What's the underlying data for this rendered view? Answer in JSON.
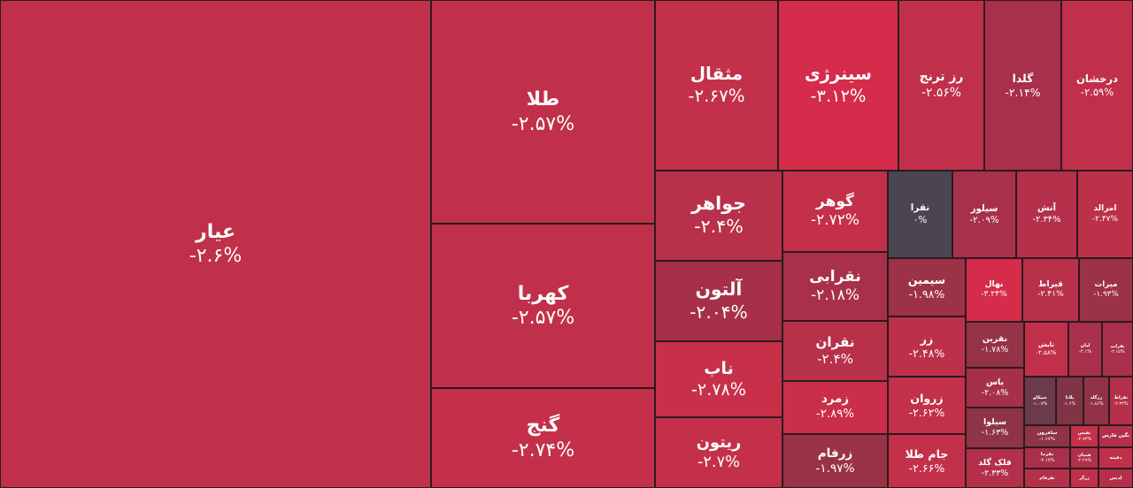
{
  "tiles": [
    {
      "name": "عیار",
      "change": "-۲.۶%",
      "color": "#c0304a"
    },
    {
      "name": "طلا",
      "change": "-۲.۵۷%",
      "color": "#c0304a"
    },
    {
      "name": "کهربا",
      "change": "-۲.۵۷%",
      "color": "#c0304a"
    },
    {
      "name": "گنج",
      "change": "-۲.۷۴%",
      "color": "#c4304a"
    },
    {
      "name": "مثقال",
      "change": "-۲.۶۷%",
      "color": "#c2304a"
    },
    {
      "name": "سینرژی",
      "change": "-۳.۱۲%",
      "color": "#d42c4a"
    },
    {
      "name": "رز ترنج",
      "change": "-۲.۵۶%",
      "color": "#c0304a"
    },
    {
      "name": "گلدا",
      "change": "-۲.۱۴%",
      "color": "#a8304a"
    },
    {
      "name": "درخشان",
      "change": "-۲.۵۹%",
      "color": "#c0304a"
    },
    {
      "name": "جواهر",
      "change": "-۲.۴%",
      "color": "#b8304a"
    },
    {
      "name": "آلتون",
      "change": "-۲.۰۴%",
      "color": "#a53048"
    },
    {
      "name": "ناب",
      "change": "-۲.۷۸%",
      "color": "#c8304a"
    },
    {
      "name": "ریتون",
      "change": "-۲.۷%",
      "color": "#c4304a"
    },
    {
      "name": "گوهر",
      "change": "-۲.۷۲%",
      "color": "#c4304a"
    },
    {
      "name": "نقرابی",
      "change": "-۲.۱۸%",
      "color": "#a83048"
    },
    {
      "name": "نقران",
      "change": "-۲.۴%",
      "color": "#b8304a"
    },
    {
      "name": "زمرد",
      "change": "-۲.۸۹%",
      "color": "#ca2e48"
    },
    {
      "name": "زرفام",
      "change": "-۱.۹۷%",
      "color": "#9a3246"
    },
    {
      "name": "نقرا",
      "change": "۰%",
      "color": "#4a4550"
    },
    {
      "name": "سیلور",
      "change": "-۲.۰۹%",
      "color": "#a8304a"
    },
    {
      "name": "آتش",
      "change": "-۲.۳۴%",
      "color": "#b4304a"
    },
    {
      "name": "امرالد",
      "change": "-۲.۴۷%",
      "color": "#bc304a"
    },
    {
      "name": "سیمین",
      "change": "-۱.۹۸%",
      "color": "#9c3246"
    },
    {
      "name": "زر",
      "change": "-۲.۴۸%",
      "color": "#bc304a"
    },
    {
      "name": "زروان",
      "change": "-۲.۶۲%",
      "color": "#c2304a"
    },
    {
      "name": "جام طلا",
      "change": "-۲.۶۶%",
      "color": "#c2304a"
    },
    {
      "name": "نهال",
      "change": "-۳.۲۴%",
      "color": "#d42c4a"
    },
    {
      "name": "قیراط",
      "change": "-۲.۴۱%",
      "color": "#b8304a"
    },
    {
      "name": "میرات",
      "change": "-۱.۹۳%",
      "color": "#9c3246"
    },
    {
      "name": "نقرین",
      "change": "-۱.۷۸%",
      "color": "#953246"
    },
    {
      "name": "یاس",
      "change": "-۲.۰۸%",
      "color": "#a53048"
    },
    {
      "name": "سیلوا",
      "change": "-۱.۶۳%",
      "color": "#8e3446"
    },
    {
      "name": "فلک گلد",
      "change": "-۲.۳۳%",
      "color": "#b4304a"
    },
    {
      "name": "تابش",
      "change": "-۲.۵۸%",
      "color": "#c0304a"
    },
    {
      "name": "لیان",
      "change": "-۲.۱%",
      "color": "#a8304a"
    },
    {
      "name": "نقرامد",
      "change": "-۲.۱۵%",
      "color": "#a8304a"
    },
    {
      "name": "سیکاو",
      "change": "-۱.۰۷%",
      "color": "#6c3a48"
    },
    {
      "name": "پلاتا",
      "change": "-۱.۶%",
      "color": "#803446"
    },
    {
      "name": "رزگلد",
      "change": "-۱.۸۶%",
      "color": "#923246"
    },
    {
      "name": "نقراط",
      "change": "-۲.۳۳%",
      "color": "#b4304a"
    },
    {
      "name": "سافرون",
      "change": "-۱.۶۷%",
      "color": "#8e3446"
    },
    {
      "name": "نفیس",
      "change": "-۲.۷۳%",
      "color": "#c4304a"
    },
    {
      "name": "نگین فارس",
      "color": "#b4304a"
    },
    {
      "name": "نقرما",
      "change": "-۲.۱۷%",
      "color": "#a8304a"
    },
    {
      "name": "همیان",
      "change": "-۲.۲۹%",
      "color": "#b0304a"
    },
    {
      "name": "دفینه",
      "color": "#c0304a"
    },
    {
      "name": "نقرفام",
      "color": "#b4304a"
    },
    {
      "name": "زرگر",
      "color": "#c0304a"
    },
    {
      "name": "لدیس",
      "color": "#b4304a"
    }
  ]
}
